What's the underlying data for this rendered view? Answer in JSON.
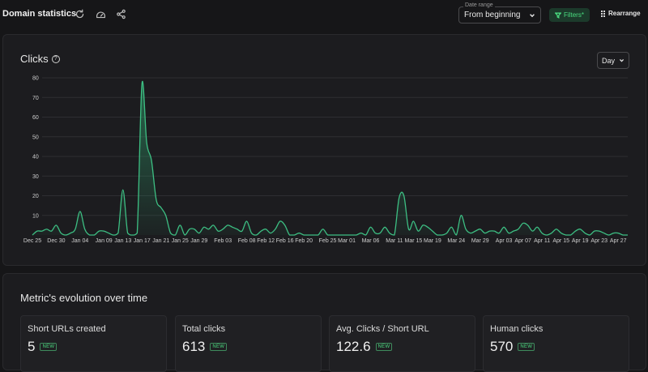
{
  "header": {
    "title": "Domain statistics",
    "date_range": {
      "label": "Date range",
      "value": "From beginning"
    },
    "filters_label": "Filters*",
    "rearrange_label": "Rearrange"
  },
  "clicks_card": {
    "title": "Clicks",
    "help_icon": "?",
    "granularity": "Day"
  },
  "chart_data": {
    "type": "area",
    "title": "",
    "xlabel": "",
    "ylabel": "",
    "ylim": [
      0,
      80
    ],
    "yticks": [
      10,
      20,
      30,
      40,
      50,
      60,
      70,
      80
    ],
    "grid": true,
    "x_tick_labels": [
      "Dec 25",
      "Dec 30",
      "Jan 04",
      "Jan 09",
      "Jan 13",
      "Jan 17",
      "Jan 21",
      "Jan 25",
      "Jan 29",
      "Feb 03",
      "Feb 08",
      "Feb 12",
      "Feb 16",
      "Feb 20",
      "Feb 25",
      "Mar 01",
      "Mar 06",
      "Mar 11",
      "Mar 15",
      "Mar 19",
      "Mar 24",
      "Mar 29",
      "Apr 03",
      "Apr 07",
      "Apr 11",
      "Apr 15",
      "Apr 19",
      "Apr 23",
      "Apr 27"
    ],
    "series": [
      {
        "color": "#3dbf83",
        "points": [
          [
            "Dec 25",
            0
          ],
          [
            "Dec 26",
            2
          ],
          [
            "Dec 27",
            2
          ],
          [
            "Dec 28",
            3
          ],
          [
            "Dec 29",
            2
          ],
          [
            "Dec 30",
            5
          ],
          [
            "Dec 31",
            1
          ],
          [
            "Jan 01",
            0
          ],
          [
            "Jan 02",
            1
          ],
          [
            "Jan 03",
            3
          ],
          [
            "Jan 04",
            12
          ],
          [
            "Jan 05",
            3
          ],
          [
            "Jan 06",
            0
          ],
          [
            "Jan 07",
            0
          ],
          [
            "Jan 08",
            2
          ],
          [
            "Jan 09",
            2
          ],
          [
            "Jan 10",
            1
          ],
          [
            "Jan 11",
            0
          ],
          [
            "Jan 12",
            1
          ],
          [
            "Jan 13",
            23
          ],
          [
            "Jan 14",
            1
          ],
          [
            "Jan 15",
            0
          ],
          [
            "Jan 16",
            1
          ],
          [
            "Jan 17",
            77
          ],
          [
            "Jan 18",
            47
          ],
          [
            "Jan 19",
            38
          ],
          [
            "Jan 20",
            18
          ],
          [
            "Jan 21",
            14
          ],
          [
            "Jan 22",
            10
          ],
          [
            "Jan 23",
            1
          ],
          [
            "Jan 24",
            0
          ],
          [
            "Jan 25",
            5
          ],
          [
            "Jan 26",
            0
          ],
          [
            "Jan 27",
            3
          ],
          [
            "Jan 28",
            3
          ],
          [
            "Jan 29",
            1
          ],
          [
            "Jan 30",
            4
          ],
          [
            "Jan 31",
            3
          ],
          [
            "Feb 01",
            5
          ],
          [
            "Feb 02",
            2
          ],
          [
            "Feb 03",
            3
          ],
          [
            "Feb 04",
            5
          ],
          [
            "Feb 05",
            4
          ],
          [
            "Feb 06",
            3
          ],
          [
            "Feb 07",
            2
          ],
          [
            "Feb 08",
            7
          ],
          [
            "Feb 09",
            1
          ],
          [
            "Feb 10",
            0
          ],
          [
            "Feb 11",
            2
          ],
          [
            "Feb 12",
            3
          ],
          [
            "Feb 13",
            1
          ],
          [
            "Feb 14",
            3
          ],
          [
            "Feb 15",
            7
          ],
          [
            "Feb 16",
            5
          ],
          [
            "Feb 17",
            0
          ],
          [
            "Feb 18",
            0
          ],
          [
            "Feb 19",
            1
          ],
          [
            "Feb 20",
            0
          ],
          [
            "Feb 21",
            0
          ],
          [
            "Feb 22",
            0
          ],
          [
            "Feb 23",
            0
          ],
          [
            "Feb 24",
            3
          ],
          [
            "Feb 25",
            0
          ],
          [
            "Feb 26",
            0
          ],
          [
            "Feb 27",
            0
          ],
          [
            "Feb 28",
            0
          ],
          [
            "Mar 01",
            0
          ],
          [
            "Mar 02",
            0
          ],
          [
            "Mar 03",
            0
          ],
          [
            "Mar 04",
            1
          ],
          [
            "Mar 05",
            0
          ],
          [
            "Mar 06",
            4
          ],
          [
            "Mar 07",
            1
          ],
          [
            "Mar 08",
            1
          ],
          [
            "Mar 09",
            4
          ],
          [
            "Mar 10",
            1
          ],
          [
            "Mar 11",
            0
          ],
          [
            "Mar 12",
            19
          ],
          [
            "Mar 13",
            20
          ],
          [
            "Mar 14",
            3
          ],
          [
            "Mar 15",
            7
          ],
          [
            "Mar 16",
            2
          ],
          [
            "Mar 17",
            5
          ],
          [
            "Mar 18",
            4
          ],
          [
            "Mar 19",
            2
          ],
          [
            "Mar 20",
            0
          ],
          [
            "Mar 21",
            0
          ],
          [
            "Mar 22",
            1
          ],
          [
            "Mar 23",
            4
          ],
          [
            "Mar 24",
            0
          ],
          [
            "Mar 25",
            10
          ],
          [
            "Mar 26",
            3
          ],
          [
            "Mar 27",
            1
          ],
          [
            "Mar 28",
            2
          ],
          [
            "Mar 29",
            3
          ],
          [
            "Mar 30",
            1
          ],
          [
            "Mar 31",
            2
          ],
          [
            "Apr 01",
            2
          ],
          [
            "Apr 02",
            1
          ],
          [
            "Apr 03",
            4
          ],
          [
            "Apr 04",
            1
          ],
          [
            "Apr 05",
            2
          ],
          [
            "Apr 06",
            3
          ],
          [
            "Apr 07",
            6
          ],
          [
            "Apr 08",
            5
          ],
          [
            "Apr 09",
            2
          ],
          [
            "Apr 10",
            4
          ],
          [
            "Apr 11",
            1
          ],
          [
            "Apr 12",
            0
          ],
          [
            "Apr 13",
            1
          ],
          [
            "Apr 14",
            3
          ],
          [
            "Apr 15",
            1
          ],
          [
            "Apr 16",
            0
          ],
          [
            "Apr 17",
            0
          ],
          [
            "Apr 18",
            2
          ],
          [
            "Apr 19",
            3
          ],
          [
            "Apr 20",
            1
          ],
          [
            "Apr 21",
            0
          ],
          [
            "Apr 22",
            2
          ],
          [
            "Apr 23",
            2
          ],
          [
            "Apr 24",
            1
          ],
          [
            "Apr 25",
            0
          ],
          [
            "Apr 26",
            1
          ],
          [
            "Apr 27",
            1
          ],
          [
            "Apr 28",
            0
          ],
          [
            "Apr 29",
            0
          ]
        ]
      }
    ]
  },
  "metrics_card": {
    "title": "Metric's evolution over time",
    "badge": "NEW",
    "tiles": [
      {
        "label": "Short URLs created",
        "value": "5"
      },
      {
        "label": "Total clicks",
        "value": "613"
      },
      {
        "label": "Avg. Clicks / Short URL",
        "value": "122.6"
      },
      {
        "label": "Human clicks",
        "value": "570"
      }
    ]
  }
}
